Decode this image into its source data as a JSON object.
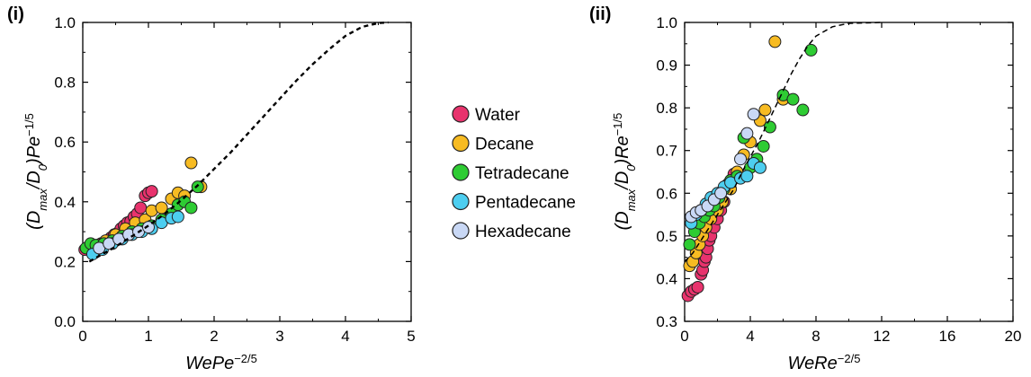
{
  "chart_data": [
    {
      "panel_label": "(i)",
      "type": "scatter",
      "xlabel": "WePe",
      "xlabel_sup": "−2/5",
      "ylabel_parts": [
        "(D",
        "max",
        "/D",
        "0",
        ")Pe",
        "−1/5"
      ],
      "xlim": [
        0,
        5
      ],
      "ylim": [
        0,
        1.0
      ],
      "xticks": [
        "0",
        "1",
        "2",
        "3",
        "4",
        "5"
      ],
      "yticks": [
        "0.0",
        "0.2",
        "0.4",
        "0.6",
        "0.8",
        "1.0"
      ],
      "curve": [
        [
          0.1,
          0.2
        ],
        [
          0.3,
          0.225
        ],
        [
          0.5,
          0.25
        ],
        [
          0.75,
          0.285
        ],
        [
          1.0,
          0.32
        ],
        [
          1.25,
          0.36
        ],
        [
          1.5,
          0.405
        ],
        [
          1.75,
          0.455
        ],
        [
          2.0,
          0.51
        ],
        [
          2.25,
          0.565
        ],
        [
          2.5,
          0.625
        ],
        [
          2.75,
          0.685
        ],
        [
          3.0,
          0.745
        ],
        [
          3.25,
          0.805
        ],
        [
          3.5,
          0.86
        ],
        [
          3.75,
          0.91
        ],
        [
          4.0,
          0.955
        ],
        [
          4.25,
          0.985
        ],
        [
          4.5,
          0.998
        ],
        [
          4.65,
          1.0
        ]
      ],
      "series": [
        {
          "name": "Water",
          "color": "#e8336d",
          "points": [
            [
              0.03,
              0.24
            ],
            [
              0.08,
              0.245
            ],
            [
              0.12,
              0.25
            ],
            [
              0.18,
              0.25
            ],
            [
              0.22,
              0.255
            ],
            [
              0.28,
              0.26
            ],
            [
              0.33,
              0.265
            ],
            [
              0.38,
              0.27
            ],
            [
              0.43,
              0.28
            ],
            [
              0.48,
              0.29
            ],
            [
              0.53,
              0.295
            ],
            [
              0.58,
              0.31
            ],
            [
              0.63,
              0.32
            ],
            [
              0.68,
              0.33
            ],
            [
              0.73,
              0.335
            ],
            [
              0.78,
              0.35
            ],
            [
              0.83,
              0.36
            ],
            [
              0.88,
              0.38
            ],
            [
              0.95,
              0.42
            ],
            [
              1.0,
              0.43
            ],
            [
              1.05,
              0.435
            ]
          ]
        },
        {
          "name": "Decane",
          "color": "#f7bb22",
          "points": [
            [
              0.35,
              0.27
            ],
            [
              0.5,
              0.29
            ],
            [
              0.65,
              0.31
            ],
            [
              0.8,
              0.33
            ],
            [
              0.95,
              0.34
            ],
            [
              1.05,
              0.37
            ],
            [
              1.2,
              0.38
            ],
            [
              1.35,
              0.41
            ],
            [
              1.45,
              0.43
            ],
            [
              1.55,
              0.42
            ],
            [
              1.65,
              0.53
            ],
            [
              1.8,
              0.45
            ]
          ]
        },
        {
          "name": "Tetradecane",
          "color": "#2ecc33",
          "points": [
            [
              0.05,
              0.245
            ],
            [
              0.12,
              0.26
            ],
            [
              0.2,
              0.255
            ],
            [
              0.32,
              0.26
            ],
            [
              0.45,
              0.27
            ],
            [
              0.6,
              0.285
            ],
            [
              0.75,
              0.3
            ],
            [
              0.9,
              0.31
            ],
            [
              1.05,
              0.32
            ],
            [
              1.2,
              0.34
            ],
            [
              1.35,
              0.36
            ],
            [
              1.45,
              0.39
            ],
            [
              1.55,
              0.4
            ],
            [
              1.65,
              0.38
            ],
            [
              1.75,
              0.45
            ]
          ]
        },
        {
          "name": "Pentadecane",
          "color": "#4dcef0",
          "points": [
            [
              0.15,
              0.225
            ],
            [
              0.3,
              0.24
            ],
            [
              0.45,
              0.26
            ],
            [
              0.6,
              0.275
            ],
            [
              0.75,
              0.29
            ],
            [
              0.9,
              0.3
            ],
            [
              1.05,
              0.31
            ],
            [
              1.2,
              0.33
            ],
            [
              1.35,
              0.345
            ],
            [
              1.45,
              0.35
            ]
          ]
        },
        {
          "name": "Hexadecane",
          "color": "#c9d8f5",
          "points": [
            [
              0.25,
              0.245
            ],
            [
              0.4,
              0.26
            ],
            [
              0.55,
              0.275
            ],
            [
              0.7,
              0.29
            ],
            [
              0.85,
              0.3
            ],
            [
              1.0,
              0.315
            ]
          ]
        }
      ]
    },
    {
      "panel_label": "(ii)",
      "type": "scatter",
      "xlabel": "WeRe",
      "xlabel_sup": "−2/5",
      "ylabel_parts": [
        "(D",
        "max",
        "/D",
        "0",
        ")Re",
        "−1/5"
      ],
      "xlim": [
        0,
        20
      ],
      "ylim": [
        0.3,
        1.0
      ],
      "xticks": [
        "0",
        "4",
        "8",
        "12",
        "16",
        "20"
      ],
      "yticks": [
        "0.3",
        "0.4",
        "0.5",
        "0.6",
        "0.7",
        "0.8",
        "0.9",
        "1.0"
      ],
      "curve": [
        [
          0.0,
          0.44
        ],
        [
          0.5,
          0.46
        ],
        [
          1.0,
          0.49
        ],
        [
          1.5,
          0.52
        ],
        [
          2.0,
          0.55
        ],
        [
          2.5,
          0.58
        ],
        [
          3.0,
          0.61
        ],
        [
          3.5,
          0.65
        ],
        [
          4.0,
          0.685
        ],
        [
          4.5,
          0.72
        ],
        [
          5.0,
          0.76
        ],
        [
          5.5,
          0.8
        ],
        [
          6.0,
          0.84
        ],
        [
          6.5,
          0.88
        ],
        [
          7.0,
          0.915
        ],
        [
          7.5,
          0.945
        ],
        [
          8.0,
          0.968
        ],
        [
          9.0,
          0.99
        ],
        [
          10.0,
          0.998
        ],
        [
          12.0,
          1.0
        ]
      ],
      "series": [
        {
          "name": "Water",
          "color": "#e8336d",
          "points": [
            [
              0.2,
              0.36
            ],
            [
              0.4,
              0.37
            ],
            [
              0.6,
              0.375
            ],
            [
              0.8,
              0.38
            ],
            [
              1.0,
              0.41
            ],
            [
              1.1,
              0.42
            ],
            [
              1.2,
              0.44
            ],
            [
              1.3,
              0.45
            ],
            [
              1.4,
              0.47
            ],
            [
              1.5,
              0.49
            ],
            [
              1.6,
              0.5
            ],
            [
              1.8,
              0.52
            ],
            [
              2.0,
              0.54
            ],
            [
              2.2,
              0.56
            ],
            [
              2.4,
              0.58
            ],
            [
              2.6,
              0.62
            ],
            [
              2.8,
              0.63
            ],
            [
              3.0,
              0.645
            ]
          ]
        },
        {
          "name": "Decane",
          "color": "#f7bb22",
          "points": [
            [
              0.3,
              0.43
            ],
            [
              0.5,
              0.44
            ],
            [
              0.7,
              0.46
            ],
            [
              0.9,
              0.48
            ],
            [
              1.1,
              0.5
            ],
            [
              1.3,
              0.52
            ],
            [
              1.6,
              0.54
            ],
            [
              2.0,
              0.56
            ],
            [
              2.3,
              0.58
            ],
            [
              2.8,
              0.61
            ],
            [
              3.2,
              0.65
            ],
            [
              3.6,
              0.69
            ],
            [
              4.0,
              0.72
            ],
            [
              4.6,
              0.77
            ],
            [
              4.9,
              0.795
            ],
            [
              5.5,
              0.955
            ],
            [
              6.0,
              0.82
            ]
          ]
        },
        {
          "name": "Tetradecane",
          "color": "#2ecc33",
          "points": [
            [
              0.3,
              0.48
            ],
            [
              0.6,
              0.51
            ],
            [
              0.9,
              0.53
            ],
            [
              1.2,
              0.545
            ],
            [
              1.5,
              0.56
            ],
            [
              1.8,
              0.57
            ],
            [
              2.1,
              0.59
            ],
            [
              2.4,
              0.61
            ],
            [
              2.8,
              0.63
            ],
            [
              3.2,
              0.64
            ],
            [
              3.6,
              0.73
            ],
            [
              4.0,
              0.66
            ],
            [
              4.4,
              0.68
            ],
            [
              4.8,
              0.71
            ],
            [
              5.2,
              0.755
            ],
            [
              6.0,
              0.83
            ],
            [
              6.6,
              0.82
            ],
            [
              7.2,
              0.795
            ],
            [
              7.7,
              0.935
            ]
          ]
        },
        {
          "name": "Pentadecane",
          "color": "#4dcef0",
          "points": [
            [
              0.4,
              0.53
            ],
            [
              0.7,
              0.55
            ],
            [
              1.0,
              0.56
            ],
            [
              1.3,
              0.575
            ],
            [
              1.6,
              0.59
            ],
            [
              2.0,
              0.6
            ],
            [
              2.4,
              0.615
            ],
            [
              2.8,
              0.625
            ],
            [
              3.4,
              0.635
            ],
            [
              3.8,
              0.64
            ],
            [
              4.2,
              0.67
            ],
            [
              4.6,
              0.66
            ]
          ]
        },
        {
          "name": "Hexadecane",
          "color": "#c9d8f5",
          "points": [
            [
              0.4,
              0.545
            ],
            [
              0.7,
              0.555
            ],
            [
              1.0,
              0.56
            ],
            [
              1.4,
              0.57
            ],
            [
              1.8,
              0.585
            ],
            [
              2.2,
              0.6
            ],
            [
              3.4,
              0.68
            ],
            [
              3.8,
              0.74
            ],
            [
              4.2,
              0.785
            ]
          ]
        }
      ]
    }
  ]
}
